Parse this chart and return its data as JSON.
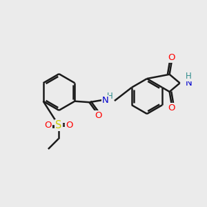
{
  "bg_color": "#ebebeb",
  "bond_color": "#1a1a1a",
  "bond_width": 1.8,
  "atom_colors": {
    "O": "#ff0000",
    "N": "#0000cd",
    "S": "#cccc00",
    "NH_color": "#2e8b8b",
    "C": "#1a1a1a"
  },
  "font_size": 8.5
}
